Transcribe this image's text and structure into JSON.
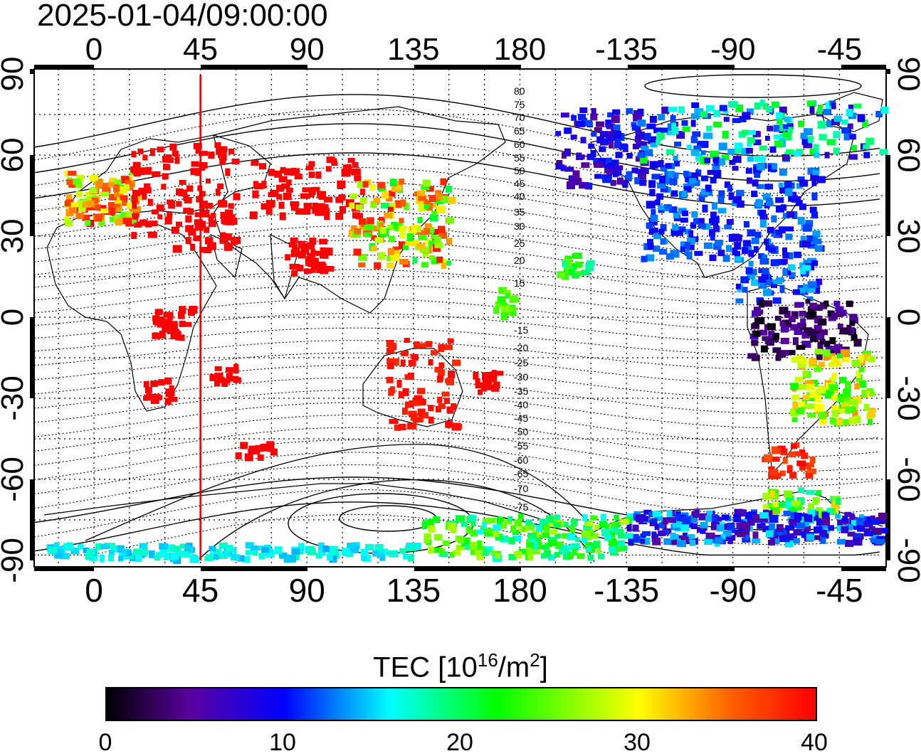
{
  "title": "2025-01-04/09:00:00",
  "map": {
    "lon_ticks": [
      "0",
      "45",
      "90",
      "135",
      "180",
      "-135",
      "-90",
      "-45"
    ],
    "lat_ticks": [
      "90",
      "60",
      "30",
      "0",
      "-30",
      "-60",
      "-90"
    ],
    "lon_range": [
      -20,
      320
    ],
    "lat_range": [
      -90,
      90
    ],
    "contour_labels": [
      "80",
      "75",
      "70",
      "65",
      "60",
      "55",
      "50",
      "45",
      "40",
      "35",
      "30",
      "25",
      "20",
      "15",
      "-15",
      "-20",
      "-25",
      "-30",
      "-35",
      "-40",
      "-45",
      "-50",
      "-55",
      "-60",
      "-65",
      "-70",
      "-75"
    ],
    "meridian_marker_lon": 45,
    "marker_color": "#e00000"
  },
  "colorbar": {
    "label_prefix": "TEC  [10",
    "label_exp1": "16",
    "label_mid": "/m",
    "label_exp2": "2",
    "label_suffix": "]",
    "ticks": [
      "0",
      "10",
      "20",
      "30",
      "40"
    ],
    "range": [
      0,
      40
    ]
  }
}
